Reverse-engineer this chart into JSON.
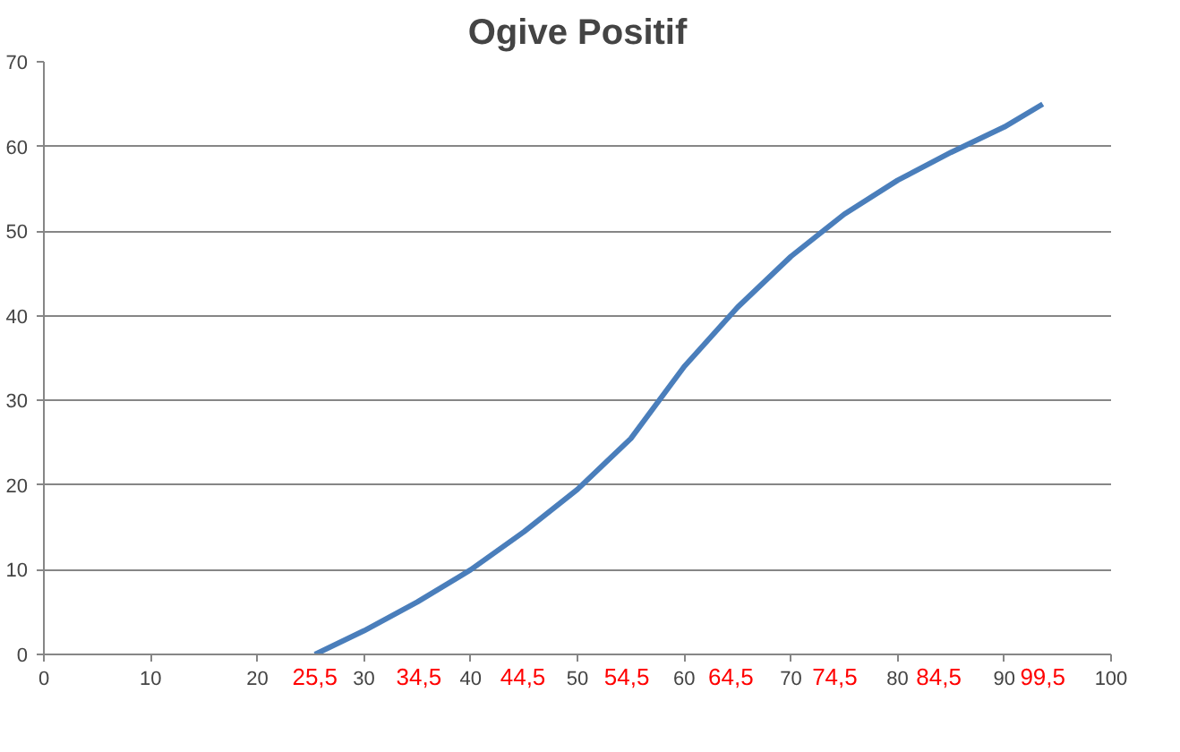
{
  "chart_data": {
    "type": "line",
    "title": "Ogive Positif",
    "x": [
      25.4,
      30,
      35,
      40,
      45,
      50,
      55,
      60,
      65,
      70,
      75,
      80,
      85,
      90,
      93.6
    ],
    "series": [
      {
        "color": "#4a7ebb",
        "values": [
          0,
          2.8,
          6.2,
          10,
          14.5,
          19.5,
          25.5,
          34,
          41,
          47,
          52,
          56,
          59.3,
          62.3,
          65
        ]
      }
    ],
    "xlim": [
      0,
      100
    ],
    "xticks": [
      0,
      10,
      20,
      30,
      40,
      50,
      60,
      70,
      80,
      90,
      100
    ],
    "ylim": [
      0,
      70
    ],
    "yticks": [
      0,
      10,
      20,
      30,
      40,
      50,
      60,
      70
    ],
    "grid": "y",
    "marker": "none",
    "line_style": "solid",
    "annotations": [
      "25,5",
      "34,5",
      "44,5",
      "54,5",
      "64,5",
      "74,5",
      "84,5",
      "99,5"
    ]
  }
}
